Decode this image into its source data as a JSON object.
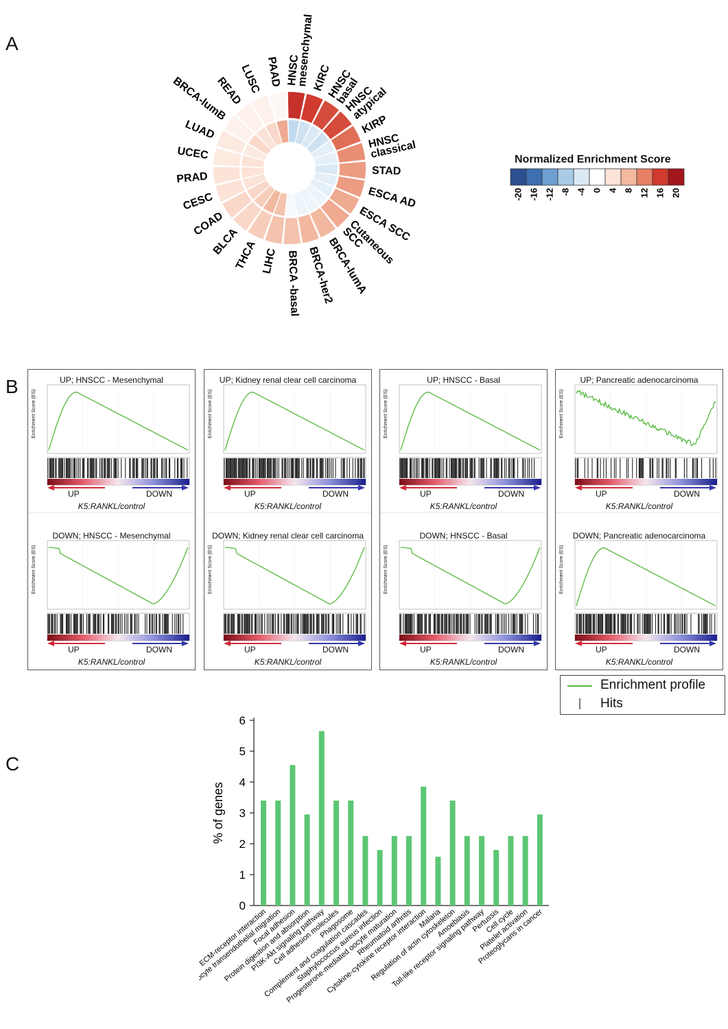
{
  "panels": {
    "a": "A",
    "b": "B",
    "c": "C"
  },
  "radial": {
    "legend_title": "Normalized Enrichment Score",
    "legend_ticks": [
      "-20",
      "-16",
      "-12",
      "-8",
      "-4",
      "0",
      "4",
      "8",
      "12",
      "16",
      "20"
    ],
    "legend_colors": [
      "#2b4f8f",
      "#3e6fae",
      "#6f9fd0",
      "#a9cbe6",
      "#dbe9f5",
      "#ffffff",
      "#fbe3d7",
      "#f2b8a0",
      "#e58064",
      "#d13a2e",
      "#a3161c"
    ],
    "labels": [
      "HNSC\nmesenchymal",
      "KIRC",
      "HNSC\nbasal",
      "HNSC\natypical",
      "KIRP",
      "HNSC\nclassical",
      "STAD",
      "ESCA AD",
      "ESCA SCC",
      "Cutaneous\nSCC",
      "BRCA-lumA",
      "BRCA-her2",
      "BRCA -basal",
      "LIHC",
      "THCA",
      "BLCA",
      "COAD",
      "CESC",
      "PRAD",
      "UCEC",
      "LUAD",
      "BRCA-lumB",
      "READ",
      "LUSC",
      "PAAD"
    ],
    "outer_nes": [
      17,
      16,
      15,
      15,
      13,
      11,
      10,
      10,
      9,
      9,
      8,
      8,
      7,
      7,
      6,
      5,
      5,
      4,
      4,
      3,
      3,
      2,
      2,
      2,
      1
    ],
    "inner_nes": [
      -6,
      -5,
      -4,
      -5,
      -3,
      -3,
      -4,
      -3,
      -3,
      -2,
      -2,
      -2,
      -1,
      7,
      8,
      6,
      5,
      4,
      4,
      4,
      3,
      5,
      4,
      5,
      9
    ]
  },
  "gsea": {
    "ylabel": "Enrichment Score (ES)",
    "xlabel": "K5:RANKL/control",
    "up_label": "UP",
    "down_label": "DOWN",
    "panels": [
      {
        "title": "UP; HNSCC - Mesenchymal",
        "kind": "up"
      },
      {
        "title": "UP; Kidney renal clear cell carcinoma",
        "kind": "up"
      },
      {
        "title": "UP; HNSCC - Basal",
        "kind": "up"
      },
      {
        "title": "UP; Pancreatic adenocarcinoma",
        "kind": "noisy"
      },
      {
        "title": "DOWN; HNSCC - Mesenchymal",
        "kind": "down"
      },
      {
        "title": "DOWN; Kidney renal clear cell carcinoma",
        "kind": "down"
      },
      {
        "title": "DOWN; HNSCC - Basal",
        "kind": "down"
      },
      {
        "title": "DOWN; Pancreatic adenocarcinoma",
        "kind": "up"
      }
    ],
    "legend": {
      "profile": "Enrichment profile",
      "hits": "Hits",
      "profile_color": "#55b83c"
    }
  },
  "chart_data": {
    "type": "bar",
    "title": "",
    "xlabel": "",
    "ylabel": "% of genes",
    "ylim": [
      0,
      6
    ],
    "yticks": [
      0,
      1,
      2,
      3,
      4,
      5,
      6
    ],
    "color": "#5cc673",
    "categories": [
      "ECM-receptor interaction",
      "Leukocyte transendothelial migration",
      "Focal adhesion",
      "Protein digestion and absorption",
      "PI3K-Akt signaling pathway",
      "Cell adhesion molecules",
      "Phagosome",
      "Complement and coagulation cascades",
      "Staphylococcus aureus infection",
      "Progesterone-mediated oocyte maturation",
      "Rheumatoid arthritis",
      "Cytokine-cytokine receptor interaction",
      "Malaria",
      "Regulation of actin cytoskeleton",
      "Amoebiasis",
      "Toll-like receptor signaling pathway",
      "Pertussis",
      "Cell cycle",
      "Platelet activation",
      "Proteoglycans in cancer"
    ],
    "values": [
      3.4,
      3.4,
      4.55,
      2.95,
      5.65,
      3.4,
      3.4,
      2.25,
      1.8,
      2.25,
      2.25,
      3.85,
      1.58,
      3.4,
      2.25,
      2.25,
      1.8,
      2.25,
      2.25,
      2.95
    ]
  }
}
